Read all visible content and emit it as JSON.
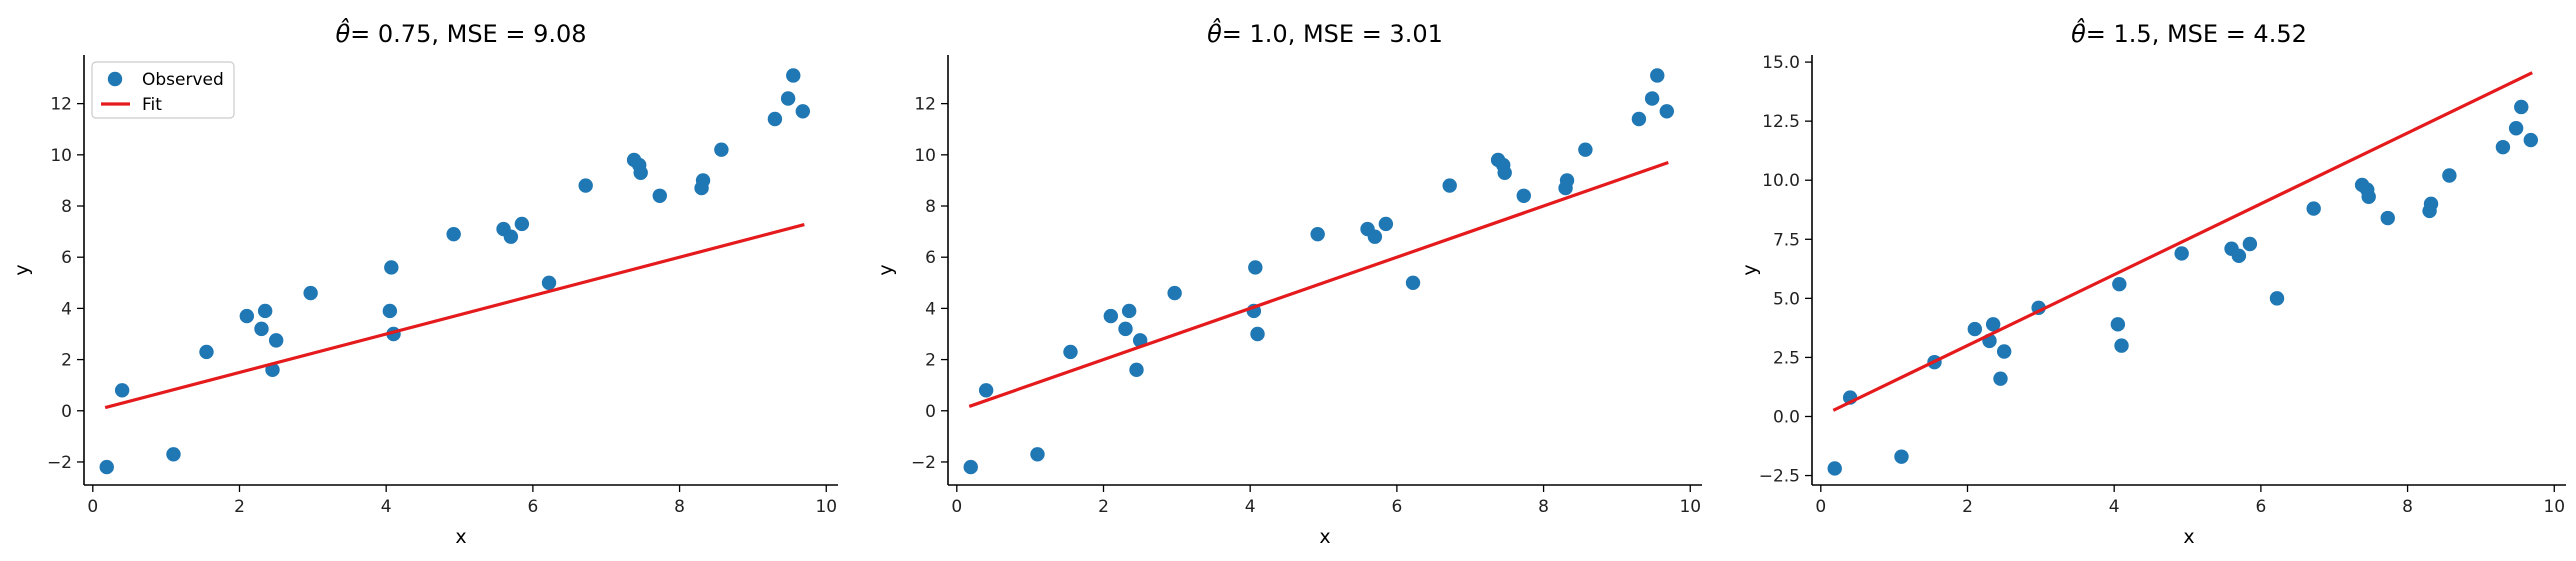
{
  "colors": {
    "points": "#1f77b4",
    "fit": "#e41a1c"
  },
  "legend": {
    "observed": "Observed",
    "fit": "Fit"
  },
  "observations": [
    [
      0.19,
      -2.2
    ],
    [
      0.4,
      0.8
    ],
    [
      1.1,
      -1.7
    ],
    [
      1.55,
      2.3
    ],
    [
      2.1,
      3.7
    ],
    [
      2.3,
      3.2
    ],
    [
      2.35,
      3.9
    ],
    [
      2.45,
      1.6
    ],
    [
      2.5,
      2.75
    ],
    [
      2.97,
      4.6
    ],
    [
      4.05,
      3.9
    ],
    [
      4.07,
      5.6
    ],
    [
      4.1,
      3.0
    ],
    [
      4.92,
      6.9
    ],
    [
      5.6,
      7.1
    ],
    [
      5.7,
      6.8
    ],
    [
      5.85,
      7.3
    ],
    [
      6.22,
      5.0
    ],
    [
      6.72,
      8.8
    ],
    [
      7.38,
      9.8
    ],
    [
      7.45,
      9.6
    ],
    [
      7.47,
      9.3
    ],
    [
      7.73,
      8.4
    ],
    [
      8.3,
      8.7
    ],
    [
      8.32,
      9.0
    ],
    [
      8.57,
      10.2
    ],
    [
      9.3,
      11.4
    ],
    [
      9.48,
      12.2
    ],
    [
      9.55,
      13.1
    ],
    [
      9.68,
      11.7
    ]
  ],
  "chart_data": [
    {
      "type": "scatter",
      "title_prefix": "θ̂",
      "title_rest": "= 0.75, MSE = 9.08",
      "xlabel": "x",
      "ylabel": "y",
      "xlim": [
        -0.12,
        10.16
      ],
      "ylim": [
        -2.9,
        13.9
      ],
      "xticks": [
        0,
        2,
        4,
        6,
        8,
        10
      ],
      "xtick_labels": [
        "0",
        "2",
        "4",
        "6",
        "8",
        "10"
      ],
      "yticks": [
        -2,
        0,
        2,
        4,
        6,
        8,
        10,
        12
      ],
      "ytick_labels": [
        "−2",
        "0",
        "2",
        "4",
        "6",
        "8",
        "10",
        "12"
      ],
      "series": [
        {
          "name": "Observed",
          "kind": "scatter",
          "source": "observations"
        },
        {
          "name": "Fit",
          "kind": "line",
          "x": [
            0.19,
            9.68
          ],
          "y": [
            0.14,
            7.26
          ]
        }
      ],
      "legend": "top-left"
    },
    {
      "type": "scatter",
      "title_prefix": "θ̂",
      "title_rest": "= 1.0, MSE = 3.01",
      "xlabel": "x",
      "ylabel": "y",
      "xlim": [
        -0.12,
        10.16
      ],
      "ylim": [
        -2.9,
        13.9
      ],
      "xticks": [
        0,
        2,
        4,
        6,
        8,
        10
      ],
      "xtick_labels": [
        "0",
        "2",
        "4",
        "6",
        "8",
        "10"
      ],
      "yticks": [
        -2,
        0,
        2,
        4,
        6,
        8,
        10,
        12
      ],
      "ytick_labels": [
        "−2",
        "0",
        "2",
        "4",
        "6",
        "8",
        "10",
        "12"
      ],
      "series": [
        {
          "name": "Observed",
          "kind": "scatter",
          "source": "observations"
        },
        {
          "name": "Fit",
          "kind": "line",
          "x": [
            0.19,
            9.68
          ],
          "y": [
            0.19,
            9.68
          ]
        }
      ]
    },
    {
      "type": "scatter",
      "title_prefix": "θ̂",
      "title_rest": "= 1.5, MSE = 4.52",
      "xlabel": "x",
      "ylabel": "y",
      "xlim": [
        -0.12,
        10.16
      ],
      "ylim": [
        -2.9,
        15.3
      ],
      "xticks": [
        0,
        2,
        4,
        6,
        8,
        10
      ],
      "xtick_labels": [
        "0",
        "2",
        "4",
        "6",
        "8",
        "10"
      ],
      "yticks": [
        -2.5,
        0,
        2.5,
        5,
        7.5,
        10,
        12.5,
        15
      ],
      "ytick_labels": [
        "−2.5",
        "0.0",
        "2.5",
        "5.0",
        "7.5",
        "10.0",
        "12.5",
        "15.0"
      ],
      "series": [
        {
          "name": "Observed",
          "kind": "scatter",
          "source": "observations"
        },
        {
          "name": "Fit",
          "kind": "line",
          "x": [
            0.19,
            9.68
          ],
          "y": [
            0.29,
            14.52
          ]
        }
      ]
    }
  ]
}
